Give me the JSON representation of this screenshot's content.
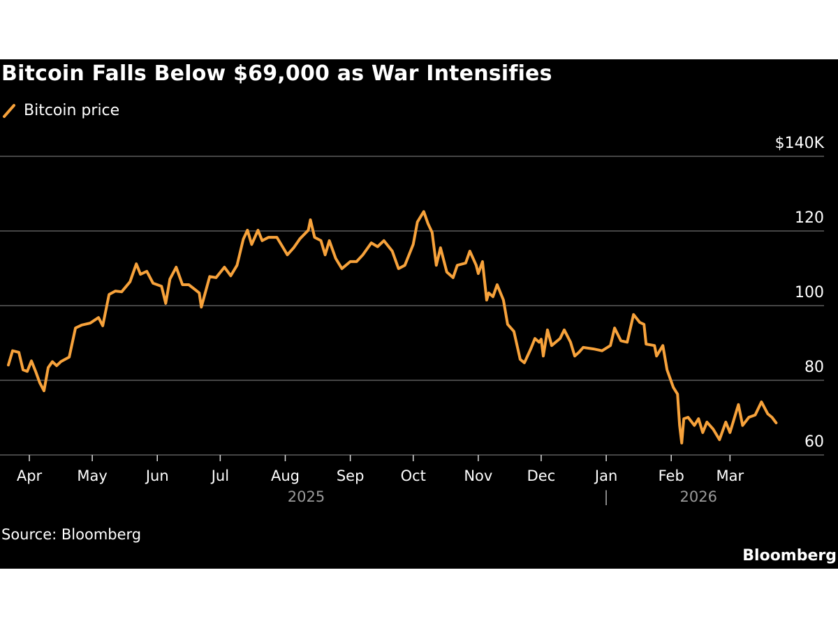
{
  "chart_data": {
    "type": "line",
    "title": "Bitcoin Falls Below $69,000 as War Intensifies",
    "source": "Source: Bloomberg",
    "logo": "Bloomberg",
    "colors": {
      "series": "#f7a23b",
      "background": "#000000",
      "grid": "#5e5e5e",
      "text": "#ffffff",
      "year_label": "#9a9a9a"
    },
    "legend_position": "top-left",
    "grid": true,
    "y_axis": {
      "position": "right",
      "unit": "thousand USD",
      "ylim": [
        60,
        140
      ],
      "ticks": [
        140,
        120,
        100,
        80,
        60
      ],
      "tick_labels": [
        "$140K",
        "120",
        "100",
        "80",
        "60"
      ]
    },
    "x_axis": {
      "tick_labels": [
        "Apr",
        "May",
        "Jun",
        "Jul",
        "Aug",
        "Sep",
        "Oct",
        "Nov",
        "Dec",
        "Jan",
        "Feb",
        "Mar"
      ],
      "tick_dates": [
        "2025-04-01",
        "2025-05-01",
        "2025-06-01",
        "2025-07-01",
        "2025-08-01",
        "2025-09-01",
        "2025-10-01",
        "2025-11-01",
        "2025-12-01",
        "2026-01-01",
        "2026-02-01",
        "2026-03-01"
      ],
      "years": [
        {
          "label": "2025",
          "center_date": "2025-08-11"
        },
        {
          "label": "2026",
          "center_date": "2026-02-14"
        }
      ],
      "year_separator": "|"
    },
    "series": [
      {
        "name": "Bitcoin price",
        "x": [
          "2025-03-22",
          "2025-03-24",
          "2025-03-27",
          "2025-03-29",
          "2025-03-31",
          "2025-04-02",
          "2025-04-04",
          "2025-04-06",
          "2025-04-08",
          "2025-04-10",
          "2025-04-12",
          "2025-04-14",
          "2025-04-16",
          "2025-04-20",
          "2025-04-23",
          "2025-04-26",
          "2025-04-30",
          "2025-05-04",
          "2025-05-06",
          "2025-05-09",
          "2025-05-12",
          "2025-05-15",
          "2025-05-19",
          "2025-05-22",
          "2025-05-24",
          "2025-05-27",
          "2025-05-30",
          "2025-06-03",
          "2025-06-05",
          "2025-06-07",
          "2025-06-10",
          "2025-06-13",
          "2025-06-16",
          "2025-06-19",
          "2025-06-21",
          "2025-06-22",
          "2025-06-26",
          "2025-06-29",
          "2025-07-03",
          "2025-07-06",
          "2025-07-09",
          "2025-07-12",
          "2025-07-14",
          "2025-07-16",
          "2025-07-19",
          "2025-07-21",
          "2025-07-24",
          "2025-07-28",
          "2025-07-31",
          "2025-08-02",
          "2025-08-05",
          "2025-08-08",
          "2025-08-12",
          "2025-08-13",
          "2025-08-15",
          "2025-08-18",
          "2025-08-20",
          "2025-08-22",
          "2025-08-25",
          "2025-08-28",
          "2025-09-01",
          "2025-09-04",
          "2025-09-07",
          "2025-09-11",
          "2025-09-14",
          "2025-09-17",
          "2025-09-21",
          "2025-09-24",
          "2025-09-27",
          "2025-10-01",
          "2025-10-03",
          "2025-10-06",
          "2025-10-08",
          "2025-10-10",
          "2025-10-12",
          "2025-10-14",
          "2025-10-17",
          "2025-10-20",
          "2025-10-22",
          "2025-10-26",
          "2025-10-28",
          "2025-10-31",
          "2025-11-01",
          "2025-11-03",
          "2025-11-05",
          "2025-11-06",
          "2025-11-08",
          "2025-11-10",
          "2025-11-13",
          "2025-11-15",
          "2025-11-18",
          "2025-11-21",
          "2025-11-23",
          "2025-11-26",
          "2025-11-28",
          "2025-11-30",
          "2025-12-01",
          "2025-12-02",
          "2025-12-04",
          "2025-12-06",
          "2025-12-10",
          "2025-12-12",
          "2025-12-15",
          "2025-12-17",
          "2025-12-19",
          "2025-12-21",
          "2025-12-26",
          "2025-12-30",
          "2026-01-03",
          "2026-01-05",
          "2026-01-08",
          "2026-01-11",
          "2026-01-14",
          "2026-01-17",
          "2026-01-19",
          "2026-01-20",
          "2026-01-24",
          "2026-01-25",
          "2026-01-28",
          "2026-01-30",
          "2026-02-02",
          "2026-02-04",
          "2026-02-05",
          "2026-02-06",
          "2026-02-07",
          "2026-02-09",
          "2026-02-12",
          "2026-02-14",
          "2026-02-16",
          "2026-02-18",
          "2026-02-21",
          "2026-02-24",
          "2026-02-27",
          "2026-03-01",
          "2026-03-05",
          "2026-03-07",
          "2026-03-10",
          "2026-03-13",
          "2026-03-16",
          "2026-03-19",
          "2026-03-21",
          "2026-03-23"
        ],
        "values": [
          84.1,
          87.9,
          87.5,
          82.8,
          82.4,
          85.2,
          82.4,
          79.3,
          77.2,
          83.4,
          85.0,
          83.9,
          85.0,
          86.2,
          94.0,
          94.8,
          95.3,
          96.8,
          94.6,
          103.0,
          103.9,
          103.7,
          106.4,
          111.2,
          108.4,
          109.2,
          106.0,
          105.2,
          100.6,
          107.1,
          110.3,
          105.6,
          105.6,
          104.3,
          103.4,
          99.6,
          107.8,
          107.5,
          110.3,
          108.0,
          110.8,
          117.8,
          120.2,
          116.4,
          120.2,
          117.4,
          118.3,
          118.3,
          115.5,
          113.6,
          115.5,
          117.9,
          120.2,
          123.0,
          118.3,
          117.4,
          113.6,
          117.4,
          112.7,
          109.9,
          111.8,
          111.8,
          113.6,
          116.8,
          115.8,
          117.4,
          114.6,
          109.9,
          110.8,
          116.4,
          122.4,
          125.2,
          122.0,
          119.6,
          110.8,
          115.5,
          109.0,
          107.5,
          110.8,
          111.4,
          114.6,
          110.8,
          108.6,
          111.8,
          101.5,
          103.4,
          102.4,
          105.6,
          101.5,
          95.0,
          93.1,
          85.6,
          84.7,
          88.4,
          91.2,
          90.2,
          91.0,
          86.5,
          93.5,
          89.3,
          91.2,
          93.5,
          90.2,
          86.5,
          87.5,
          88.8,
          88.4,
          87.9,
          89.3,
          94.0,
          90.6,
          90.2,
          97.6,
          95.5,
          95.0,
          89.7,
          89.3,
          86.5,
          89.3,
          82.8,
          78.1,
          76.3,
          67.9,
          63.2,
          69.7,
          70.1,
          67.9,
          69.7,
          66.0,
          68.8,
          66.9,
          64.1,
          68.8,
          66.0,
          73.5,
          67.9,
          70.1,
          70.7,
          74.2,
          71.0,
          70.1,
          68.6
        ]
      }
    ]
  }
}
